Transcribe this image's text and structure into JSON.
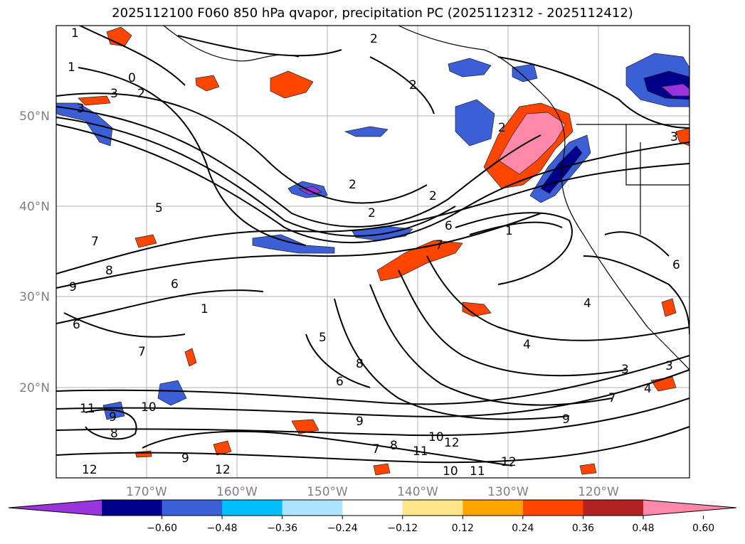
{
  "title": "2025112100 F060 850 hPa qvapor, precipitation PC (2025112312 - 2025112412)",
  "map": {
    "lat_ticks": [
      "50°N",
      "40°N",
      "30°N",
      "20°N"
    ],
    "lon_ticks": [
      "170°W",
      "160°W",
      "150°W",
      "140°W",
      "130°W",
      "120°W"
    ],
    "contour_labels": [
      "1",
      "1",
      "0",
      "3",
      "2",
      "3",
      "2",
      "2",
      "2",
      "2",
      "2",
      "1",
      "2",
      "5",
      "7",
      "8",
      "9",
      "6",
      "6",
      "7",
      "1",
      "6",
      "7",
      "5",
      "8",
      "6",
      "4",
      "11",
      "9",
      "10",
      "8",
      "12",
      "12",
      "9",
      "7",
      "8",
      "10",
      "11",
      "12",
      "12",
      "10",
      "11",
      "4",
      "3",
      "3",
      "4",
      "9",
      "3",
      "6",
      "7",
      "9"
    ]
  },
  "colorbar": {
    "ticks": [
      "−0.60",
      "−0.48",
      "−0.36",
      "−0.24",
      "−0.12",
      "0.12",
      "0.24",
      "0.36",
      "0.48",
      "0.60"
    ],
    "colors": [
      "#9933dd",
      "#00008b",
      "#3b5fd6",
      "#00bfff",
      "#aee3ff",
      "#ffffff",
      "#ffe68a",
      "#ffa500",
      "#ff4500",
      "#b22222",
      "#ff88aa"
    ]
  }
}
